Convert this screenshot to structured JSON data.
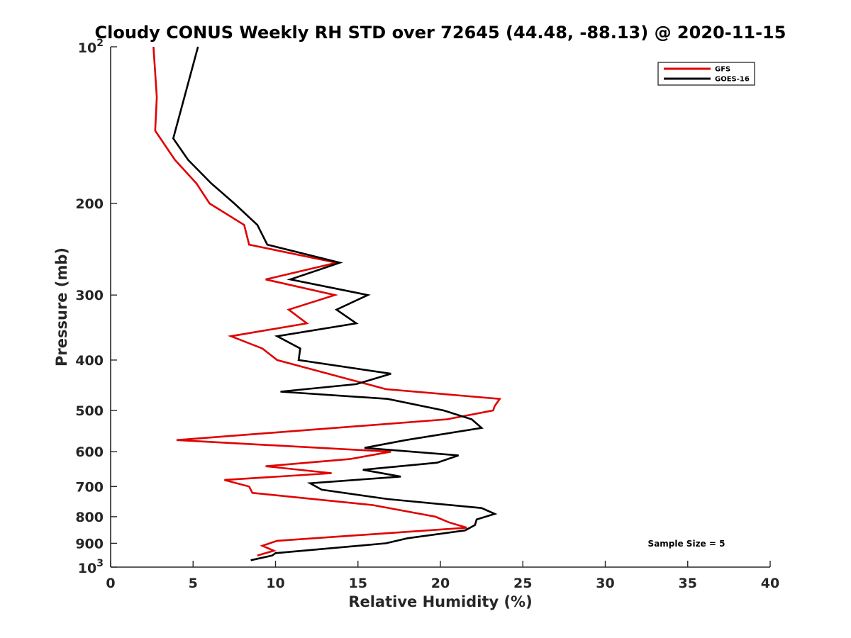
{
  "chart_data": {
    "type": "line",
    "title": "Cloudy CONUS Weekly RH STD over 72645 (44.48, -88.13) @ 2020-11-15",
    "xlabel": "Relative Humidity (%)",
    "ylabel": "Pressure (mb)",
    "xlim": [
      0,
      40
    ],
    "ylim": [
      100,
      1000
    ],
    "y_scale": "log",
    "y_reversed": true,
    "x_ticks": [
      {
        "value": 0,
        "label": "0"
      },
      {
        "value": 5,
        "label": "5"
      },
      {
        "value": 10,
        "label": "10"
      },
      {
        "value": 15,
        "label": "15"
      },
      {
        "value": 20,
        "label": "20"
      },
      {
        "value": 25,
        "label": "25"
      },
      {
        "value": 30,
        "label": "30"
      },
      {
        "value": 35,
        "label": "35"
      },
      {
        "value": 40,
        "label": "40"
      }
    ],
    "y_ticks": [
      {
        "value": 100,
        "base": "10",
        "exp": "2"
      },
      {
        "value": 200,
        "label": "200"
      },
      {
        "value": 300,
        "label": "300"
      },
      {
        "value": 400,
        "label": "400"
      },
      {
        "value": 500,
        "label": "500"
      },
      {
        "value": 600,
        "label": "600"
      },
      {
        "value": 700,
        "label": "700"
      },
      {
        "value": 800,
        "label": "800"
      },
      {
        "value": 900,
        "label": "900"
      },
      {
        "value": 1000,
        "base": "10",
        "exp": "3"
      }
    ],
    "grid": false,
    "legend_position": "top-right",
    "annotation": "Sample Size = 5",
    "series": [
      {
        "name": "GFS",
        "color": "#e00000",
        "x": [
          2.6,
          2.8,
          2.7,
          3.9,
          5.2,
          6.0,
          8.1,
          8.4,
          13.7,
          9.4,
          13.6,
          10.8,
          11.9,
          7.3,
          9.2,
          10.1,
          13.2,
          16.7,
          23.6,
          23.3,
          23.2,
          20.4,
          4.0,
          17.0,
          14.5,
          9.4,
          13.4,
          6.9,
          8.4,
          8.6,
          15.9,
          19.7,
          20.5,
          21.6,
          10.1,
          9.2,
          9.9,
          8.9
        ],
        "y": [
          100,
          125,
          145,
          165,
          183,
          200,
          220,
          240,
          260,
          280,
          300,
          320,
          340,
          360,
          380,
          400,
          425,
          455,
          475,
          490,
          500,
          520,
          570,
          600,
          620,
          640,
          660,
          680,
          700,
          720,
          760,
          800,
          820,
          840,
          890,
          910,
          930,
          950
        ]
      },
      {
        "name": "GOES-16",
        "color": "#000000",
        "x": [
          5.3,
          3.8,
          4.7,
          6.1,
          7.5,
          8.9,
          9.5,
          13.9,
          10.9,
          15.6,
          13.7,
          14.9,
          10.1,
          11.5,
          11.4,
          17.0,
          14.9,
          10.3,
          16.8,
          20.2,
          21.9,
          22.5,
          17.9,
          15.4,
          21.1,
          19.8,
          15.3,
          17.6,
          12.1,
          12.8,
          16.8,
          22.5,
          23.3,
          22.2,
          22.1,
          21.5,
          18.0,
          16.7,
          10.0,
          9.8,
          8.5
        ],
        "y": [
          100,
          150,
          165,
          183,
          200,
          220,
          240,
          260,
          280,
          300,
          320,
          340,
          360,
          380,
          400,
          425,
          445,
          460,
          475,
          500,
          520,
          540,
          570,
          590,
          610,
          630,
          650,
          670,
          690,
          710,
          740,
          770,
          790,
          810,
          830,
          850,
          880,
          900,
          940,
          950,
          970
        ]
      }
    ]
  }
}
